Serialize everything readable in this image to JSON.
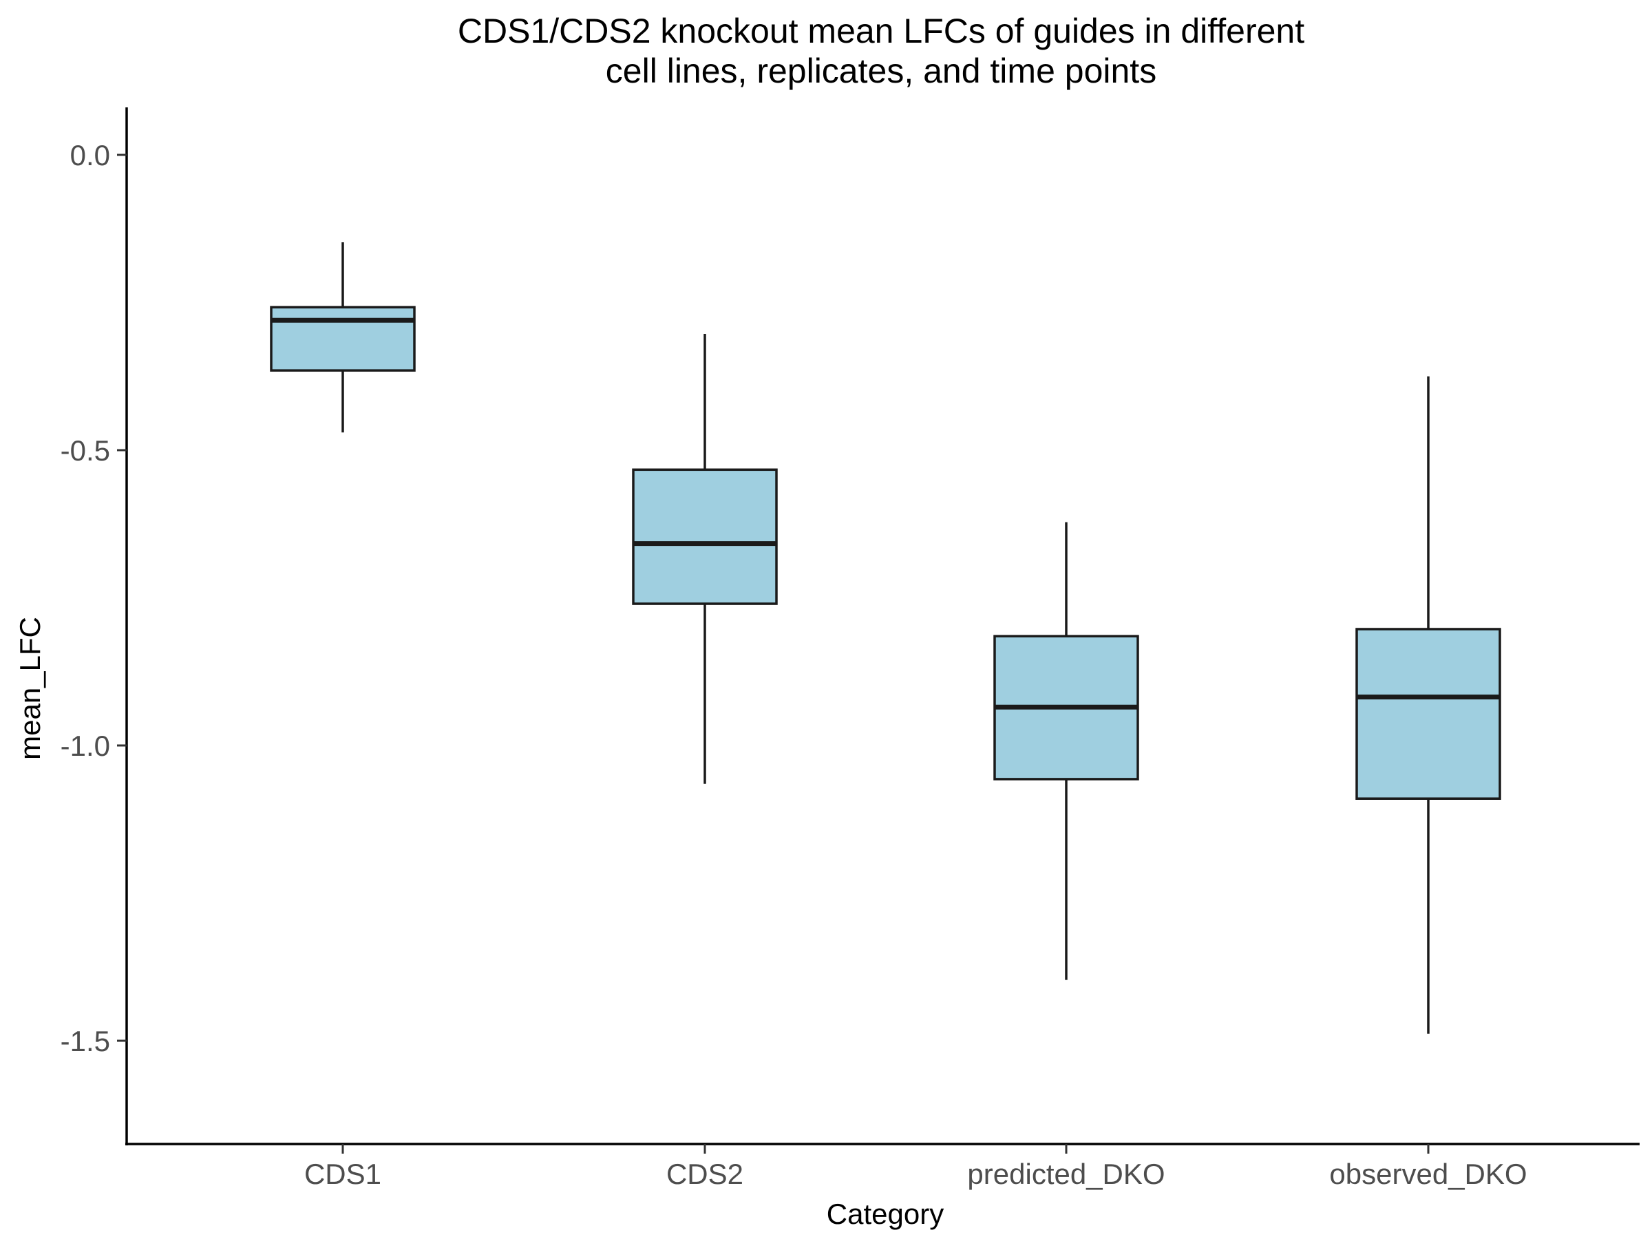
{
  "chart_data": {
    "type": "box",
    "title_lines": [
      "CDS1/CDS2 knockout mean LFCs of guides in different",
      "cell lines, replicates, and time points"
    ],
    "xlabel": "Category",
    "ylabel": "mean_LFC",
    "ylim": [
      -1.66,
      0.08
    ],
    "yticks": [
      0.0,
      -0.5,
      -1.0,
      -1.5
    ],
    "ytick_labels": [
      "0.0",
      "-0.5",
      "-1.0",
      "-1.5"
    ],
    "categories": [
      "CDS1",
      "CDS2",
      "predicted_DKO",
      "observed_DKO"
    ],
    "boxes": [
      {
        "category": "CDS1",
        "whisker_low": -0.47,
        "q1": -0.365,
        "median": -0.28,
        "q3": -0.258,
        "whisker_high": -0.148
      },
      {
        "category": "CDS2",
        "whisker_low": -1.065,
        "q1": -0.76,
        "median": -0.658,
        "q3": -0.533,
        "whisker_high": -0.303
      },
      {
        "category": "predicted_DKO",
        "whisker_low": -1.397,
        "q1": -1.057,
        "median": -0.935,
        "q3": -0.815,
        "whisker_high": -0.622
      },
      {
        "category": "observed_DKO",
        "whisker_low": -1.488,
        "q1": -1.09,
        "median": -0.918,
        "q3": -0.803,
        "whisker_high": -0.375
      }
    ],
    "box_fill": "#9fcfe0",
    "line_color": "#1a1a1a",
    "grid": false,
    "legend": "none"
  }
}
